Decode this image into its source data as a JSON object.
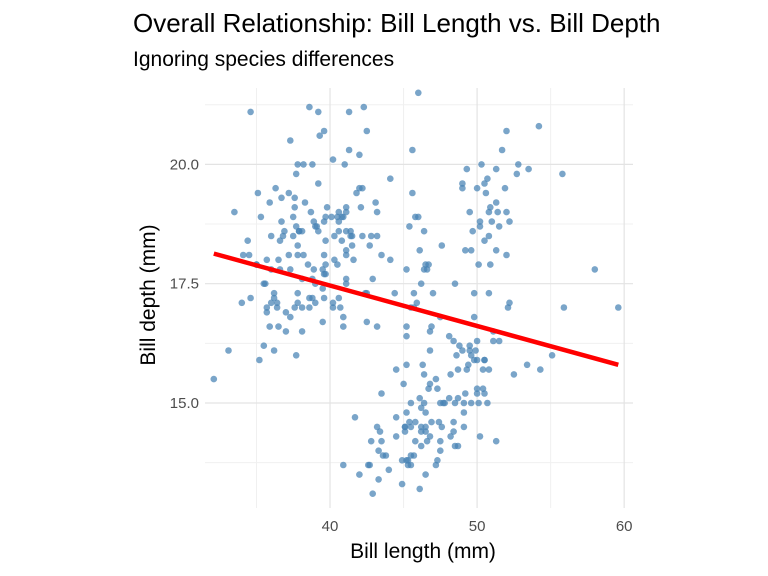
{
  "chart_data": {
    "type": "scatter",
    "title": "Overall Relationship: Bill Length vs. Bill Depth",
    "subtitle": "Ignoring species differences",
    "xlabel": "Bill length (mm)",
    "ylabel": "Bill depth (mm)",
    "xlim": [
      31.5,
      60.6
    ],
    "ylim": [
      12.8,
      21.6
    ],
    "xticks": [
      40,
      50,
      60
    ],
    "xtick_labels": [
      "40",
      "50",
      "60"
    ],
    "yticks": [
      15.0,
      17.5,
      20.0
    ],
    "ytick_labels": [
      "15.0",
      "17.5",
      "20.0"
    ],
    "grid": true,
    "point_color": "#4682b4",
    "line_color": "#ff0000",
    "trend_line": {
      "x": [
        32.1,
        59.6
      ],
      "y": [
        18.13,
        15.8
      ]
    },
    "points": [
      [
        39.1,
        18.7
      ],
      [
        39.5,
        17.4
      ],
      [
        40.3,
        18.0
      ],
      [
        36.7,
        19.3
      ],
      [
        39.3,
        20.6
      ],
      [
        38.9,
        17.8
      ],
      [
        39.2,
        19.6
      ],
      [
        34.1,
        18.1
      ],
      [
        42.0,
        20.2
      ],
      [
        37.8,
        17.1
      ],
      [
        37.8,
        17.3
      ],
      [
        41.1,
        17.6
      ],
      [
        38.6,
        21.2
      ],
      [
        34.6,
        21.1
      ],
      [
        36.6,
        17.8
      ],
      [
        38.7,
        19.0
      ],
      [
        42.5,
        20.7
      ],
      [
        34.4,
        18.4
      ],
      [
        46.0,
        21.5
      ],
      [
        37.8,
        18.3
      ],
      [
        37.7,
        18.7
      ],
      [
        35.9,
        19.2
      ],
      [
        38.2,
        18.1
      ],
      [
        38.8,
        17.2
      ],
      [
        35.3,
        18.9
      ],
      [
        40.6,
        18.6
      ],
      [
        40.5,
        17.9
      ],
      [
        37.9,
        18.6
      ],
      [
        40.5,
        18.9
      ],
      [
        39.5,
        16.7
      ],
      [
        37.2,
        18.1
      ],
      [
        39.5,
        17.8
      ],
      [
        40.9,
        18.9
      ],
      [
        36.4,
        17.0
      ],
      [
        39.2,
        21.1
      ],
      [
        38.8,
        20.0
      ],
      [
        42.2,
        18.5
      ],
      [
        37.6,
        19.3
      ],
      [
        39.8,
        19.1
      ],
      [
        36.5,
        18.0
      ],
      [
        40.8,
        18.4
      ],
      [
        36.0,
        18.5
      ],
      [
        44.1,
        19.7
      ],
      [
        37.0,
        16.9
      ],
      [
        39.6,
        18.8
      ],
      [
        41.1,
        19.0
      ],
      [
        37.5,
        18.9
      ],
      [
        42.3,
        21.2
      ],
      [
        39.6,
        17.7
      ],
      [
        40.1,
        18.9
      ],
      [
        35.0,
        17.9
      ],
      [
        42.0,
        19.5
      ],
      [
        34.5,
        18.1
      ],
      [
        41.4,
        18.6
      ],
      [
        39.0,
        17.5
      ],
      [
        40.6,
        18.8
      ],
      [
        36.5,
        16.6
      ],
      [
        37.6,
        19.1
      ],
      [
        35.7,
        16.9
      ],
      [
        41.3,
        21.1
      ],
      [
        37.6,
        17.0
      ],
      [
        41.1,
        18.2
      ],
      [
        36.4,
        17.1
      ],
      [
        41.6,
        18.0
      ],
      [
        35.5,
        16.2
      ],
      [
        41.1,
        19.1
      ],
      [
        35.9,
        16.6
      ],
      [
        41.8,
        19.4
      ],
      [
        33.5,
        19.0
      ],
      [
        39.7,
        18.4
      ],
      [
        39.6,
        17.2
      ],
      [
        45.8,
        18.9
      ],
      [
        35.5,
        17.5
      ],
      [
        42.8,
        18.5
      ],
      [
        40.9,
        16.8
      ],
      [
        37.2,
        19.4
      ],
      [
        36.2,
        16.1
      ],
      [
        42.1,
        19.1
      ],
      [
        34.6,
        17.2
      ],
      [
        42.9,
        17.6
      ],
      [
        36.7,
        18.8
      ],
      [
        35.1,
        19.4
      ],
      [
        37.3,
        17.8
      ],
      [
        41.3,
        20.3
      ],
      [
        36.3,
        19.5
      ],
      [
        36.9,
        18.6
      ],
      [
        38.3,
        19.2
      ],
      [
        38.9,
        18.8
      ],
      [
        35.7,
        18.0
      ],
      [
        41.1,
        18.1
      ],
      [
        34.0,
        17.1
      ],
      [
        39.6,
        18.1
      ],
      [
        36.2,
        17.3
      ],
      [
        40.8,
        18.9
      ],
      [
        38.1,
        18.6
      ],
      [
        40.3,
        18.5
      ],
      [
        33.1,
        16.1
      ],
      [
        43.2,
        18.5
      ],
      [
        35.0,
        17.9
      ],
      [
        41.0,
        20.0
      ],
      [
        37.7,
        16.0
      ],
      [
        37.8,
        20.0
      ],
      [
        37.9,
        18.6
      ],
      [
        39.7,
        18.9
      ],
      [
        38.6,
        17.2
      ],
      [
        38.2,
        20.0
      ],
      [
        38.1,
        17.0
      ],
      [
        43.2,
        19.0
      ],
      [
        38.1,
        16.5
      ],
      [
        45.6,
        20.3
      ],
      [
        39.7,
        17.7
      ],
      [
        42.2,
        19.5
      ],
      [
        39.6,
        20.7
      ],
      [
        42.7,
        18.3
      ],
      [
        38.6,
        17.0
      ],
      [
        37.3,
        20.5
      ],
      [
        35.7,
        17.0
      ],
      [
        41.1,
        18.6
      ],
      [
        36.2,
        17.2
      ],
      [
        37.7,
        19.8
      ],
      [
        40.2,
        17.0
      ],
      [
        41.4,
        18.5
      ],
      [
        35.2,
        15.9
      ],
      [
        40.6,
        19.0
      ],
      [
        38.8,
        17.6
      ],
      [
        41.5,
        18.3
      ],
      [
        39.0,
        17.1
      ],
      [
        44.1,
        18.0
      ],
      [
        38.5,
        17.9
      ],
      [
        43.1,
        19.2
      ],
      [
        36.8,
        18.5
      ],
      [
        37.5,
        18.5
      ],
      [
        38.1,
        17.6
      ],
      [
        41.1,
        17.5
      ],
      [
        35.6,
        17.5
      ],
      [
        40.2,
        20.1
      ],
      [
        37.0,
        16.5
      ],
      [
        39.7,
        17.9
      ],
      [
        40.2,
        17.1
      ],
      [
        40.6,
        17.2
      ],
      [
        32.1,
        15.5
      ],
      [
        40.7,
        17.0
      ],
      [
        37.3,
        16.8
      ],
      [
        39.0,
        18.7
      ],
      [
        39.2,
        18.6
      ],
      [
        36.6,
        18.4
      ],
      [
        36.0,
        17.8
      ],
      [
        37.8,
        18.1
      ],
      [
        36.0,
        17.1
      ],
      [
        41.5,
        18.5
      ],
      [
        46.1,
        13.2
      ],
      [
        50.0,
        16.3
      ],
      [
        48.7,
        14.1
      ],
      [
        50.0,
        15.2
      ],
      [
        47.6,
        14.5
      ],
      [
        46.5,
        13.5
      ],
      [
        45.4,
        14.6
      ],
      [
        46.7,
        15.3
      ],
      [
        43.3,
        13.4
      ],
      [
        46.8,
        15.4
      ],
      [
        40.9,
        13.7
      ],
      [
        49.0,
        16.1
      ],
      [
        45.5,
        13.7
      ],
      [
        48.4,
        14.6
      ],
      [
        45.8,
        14.6
      ],
      [
        49.3,
        15.7
      ],
      [
        42.0,
        13.5
      ],
      [
        49.2,
        15.2
      ],
      [
        46.2,
        14.5
      ],
      [
        48.7,
        15.1
      ],
      [
        50.2,
        14.3
      ],
      [
        45.1,
        14.5
      ],
      [
        46.5,
        14.5
      ],
      [
        46.3,
        15.8
      ],
      [
        42.9,
        13.1
      ],
      [
        46.1,
        15.1
      ],
      [
        44.5,
        14.3
      ],
      [
        47.8,
        15.0
      ],
      [
        48.2,
        14.3
      ],
      [
        50.0,
        15.3
      ],
      [
        47.3,
        15.3
      ],
      [
        42.8,
        14.2
      ],
      [
        45.1,
        14.5
      ],
      [
        59.6,
        17.0
      ],
      [
        49.1,
        14.8
      ],
      [
        48.4,
        16.3
      ],
      [
        42.6,
        13.7
      ],
      [
        44.4,
        17.3
      ],
      [
        44.0,
        13.6
      ],
      [
        48.7,
        15.7
      ],
      [
        42.7,
        13.7
      ],
      [
        49.6,
        16.0
      ],
      [
        45.3,
        13.7
      ],
      [
        49.6,
        15.0
      ],
      [
        50.5,
        15.9
      ],
      [
        43.6,
        13.9
      ],
      [
        45.5,
        13.9
      ],
      [
        50.5,
        15.9
      ],
      [
        44.9,
        13.3
      ],
      [
        45.2,
        15.8
      ],
      [
        46.6,
        14.2
      ],
      [
        48.5,
        14.1
      ],
      [
        45.1,
        14.4
      ],
      [
        50.1,
        15.0
      ],
      [
        46.5,
        14.4
      ],
      [
        45.0,
        15.4
      ],
      [
        43.8,
        13.9
      ],
      [
        45.5,
        15.0
      ],
      [
        43.2,
        14.5
      ],
      [
        50.4,
        15.3
      ],
      [
        45.3,
        13.8
      ],
      [
        46.2,
        14.9
      ],
      [
        45.7,
        13.9
      ],
      [
        54.3,
        15.7
      ],
      [
        45.8,
        14.2
      ],
      [
        49.8,
        16.8
      ],
      [
        46.2,
        14.4
      ],
      [
        49.5,
        16.2
      ],
      [
        43.5,
        14.2
      ],
      [
        50.7,
        15.0
      ],
      [
        47.7,
        15.0
      ],
      [
        46.4,
        15.6
      ],
      [
        48.2,
        15.6
      ],
      [
        46.5,
        14.8
      ],
      [
        46.4,
        15.0
      ],
      [
        48.6,
        16.0
      ],
      [
        47.5,
        14.2
      ],
      [
        51.1,
        16.3
      ],
      [
        45.2,
        13.8
      ],
      [
        45.2,
        16.4
      ],
      [
        49.1,
        14.5
      ],
      [
        52.5,
        15.6
      ],
      [
        47.4,
        14.6
      ],
      [
        50.0,
        15.9
      ],
      [
        44.9,
        13.8
      ],
      [
        50.8,
        17.3
      ],
      [
        43.4,
        14.4
      ],
      [
        51.3,
        14.2
      ],
      [
        47.5,
        14.0
      ],
      [
        52.1,
        17.0
      ],
      [
        47.5,
        15.0
      ],
      [
        52.2,
        17.1
      ],
      [
        45.5,
        14.5
      ],
      [
        49.5,
        16.1
      ],
      [
        44.5,
        14.7
      ],
      [
        50.8,
        15.7
      ],
      [
        49.4,
        15.8
      ],
      [
        46.9,
        14.6
      ],
      [
        48.4,
        14.4
      ],
      [
        51.1,
        16.5
      ],
      [
        48.5,
        15.0
      ],
      [
        55.9,
        17.0
      ],
      [
        47.2,
        15.5
      ],
      [
        49.1,
        15.0
      ],
      [
        47.3,
        13.8
      ],
      [
        46.8,
        16.1
      ],
      [
        41.7,
        14.7
      ],
      [
        53.4,
        15.8
      ],
      [
        43.3,
        14.0
      ],
      [
        48.1,
        15.1
      ],
      [
        50.5,
        15.2
      ],
      [
        49.8,
        15.9
      ],
      [
        43.5,
        15.2
      ],
      [
        51.5,
        16.3
      ],
      [
        46.2,
        14.1
      ],
      [
        55.1,
        16.0
      ],
      [
        44.5,
        15.7
      ],
      [
        48.8,
        16.2
      ],
      [
        47.2,
        13.7
      ],
      [
        46.8,
        14.3
      ],
      [
        50.4,
        15.7
      ],
      [
        45.2,
        14.8
      ],
      [
        49.9,
        16.1
      ],
      [
        46.5,
        17.9
      ],
      [
        50.0,
        19.5
      ],
      [
        51.3,
        19.2
      ],
      [
        45.4,
        18.7
      ],
      [
        52.7,
        19.8
      ],
      [
        45.2,
        17.8
      ],
      [
        46.1,
        18.2
      ],
      [
        51.3,
        18.2
      ],
      [
        46.0,
        18.9
      ],
      [
        51.3,
        19.9
      ],
      [
        46.6,
        17.8
      ],
      [
        51.7,
        20.3
      ],
      [
        47.0,
        17.3
      ],
      [
        52.0,
        18.1
      ],
      [
        45.9,
        17.1
      ],
      [
        50.5,
        19.6
      ],
      [
        50.3,
        20.0
      ],
      [
        58.0,
        17.8
      ],
      [
        46.4,
        18.6
      ],
      [
        49.2,
        18.2
      ],
      [
        42.4,
        17.3
      ],
      [
        48.5,
        17.5
      ],
      [
        43.2,
        16.6
      ],
      [
        50.6,
        19.4
      ],
      [
        46.7,
        17.9
      ],
      [
        52.0,
        19.0
      ],
      [
        50.5,
        18.4
      ],
      [
        49.5,
        19.0
      ],
      [
        46.4,
        17.8
      ],
      [
        52.8,
        20.0
      ],
      [
        40.9,
        16.6
      ],
      [
        54.2,
        20.8
      ],
      [
        42.5,
        16.7
      ],
      [
        51.0,
        18.8
      ],
      [
        49.7,
        18.6
      ],
      [
        47.5,
        16.8
      ],
      [
        47.6,
        18.3
      ],
      [
        52.0,
        20.7
      ],
      [
        46.9,
        16.6
      ],
      [
        53.5,
        19.9
      ],
      [
        49.0,
        19.5
      ],
      [
        46.2,
        17.5
      ],
      [
        50.9,
        19.1
      ],
      [
        45.5,
        17.0
      ],
      [
        50.9,
        17.9
      ],
      [
        50.8,
        18.5
      ],
      [
        50.1,
        17.9
      ],
      [
        49.0,
        19.6
      ],
      [
        51.5,
        18.7
      ],
      [
        49.8,
        17.3
      ],
      [
        48.1,
        16.4
      ],
      [
        51.4,
        19.0
      ],
      [
        45.7,
        17.3
      ],
      [
        50.7,
        19.7
      ],
      [
        42.5,
        17.3
      ],
      [
        52.2,
        18.8
      ],
      [
        45.2,
        16.6
      ],
      [
        49.3,
        19.9
      ],
      [
        50.2,
        18.8
      ],
      [
        45.6,
        19.4
      ],
      [
        51.9,
        19.5
      ],
      [
        46.8,
        16.5
      ],
      [
        45.7,
        17.0
      ],
      [
        55.8,
        19.8
      ],
      [
        43.5,
        18.1
      ],
      [
        49.6,
        18.2
      ],
      [
        50.8,
        19.0
      ],
      [
        50.2,
        18.7
      ]
    ]
  }
}
